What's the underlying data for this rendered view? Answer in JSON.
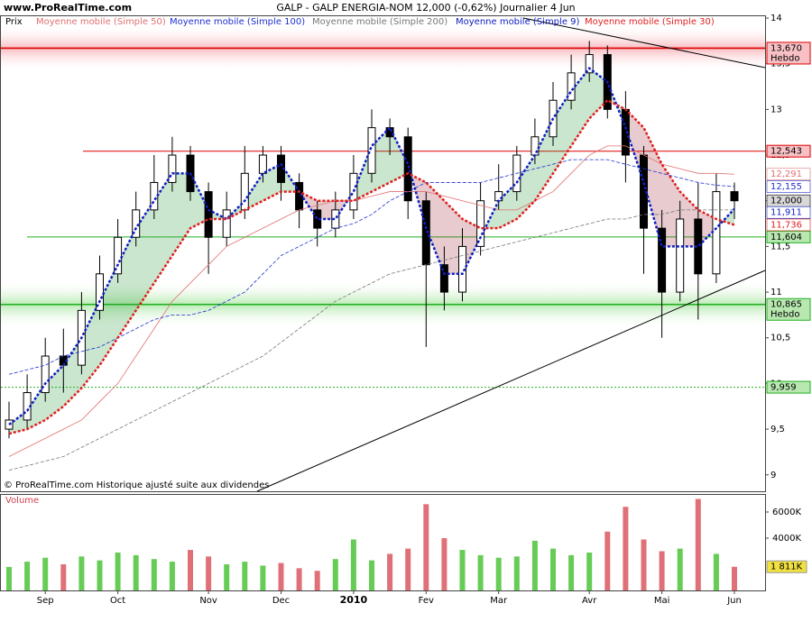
{
  "chart_data": {
    "type": "candlestick",
    "site": "www.ProRealTime.com",
    "title": "GALP - GALP ENERGIA-NOM    12,000 (-0,62%)    Journalier  4 Jun",
    "price_label": "Prix",
    "note": "© ProRealTime.com Historique ajusté suite aux dividendes",
    "categories": [
      null,
      null,
      "Sep",
      null,
      null,
      null,
      "Oct",
      null,
      null,
      null,
      null,
      "Nov",
      null,
      null,
      null,
      "Dec",
      null,
      null,
      null,
      "2010",
      null,
      null,
      null,
      "Fev",
      null,
      null,
      null,
      "Mar",
      null,
      null,
      null,
      null,
      "Avr",
      null,
      null,
      null,
      "Mai",
      null,
      null,
      null,
      "Jun"
    ],
    "open": [
      9.5,
      9.6,
      9.9,
      10.3,
      10.2,
      10.8,
      11.2,
      11.6,
      11.9,
      12.2,
      12.5,
      12.1,
      11.6,
      11.9,
      12.3,
      12.5,
      12.2,
      11.9,
      11.7,
      11.9,
      12.3,
      12.8,
      12.7,
      12.0,
      11.3,
      11.0,
      11.5,
      12.0,
      12.1,
      12.5,
      12.7,
      13.1,
      13.4,
      13.6,
      13.0,
      12.5,
      11.7,
      11.0,
      11.8,
      11.2,
      12.1
    ],
    "high": [
      9.8,
      10.1,
      10.5,
      10.6,
      11.0,
      11.4,
      11.8,
      12.1,
      12.5,
      12.7,
      12.6,
      12.2,
      12.1,
      12.6,
      12.6,
      12.6,
      12.3,
      12.0,
      12.1,
      12.5,
      13.0,
      12.9,
      12.8,
      12.1,
      11.5,
      11.7,
      12.2,
      12.4,
      12.6,
      12.9,
      13.3,
      13.6,
      13.75,
      13.7,
      13.2,
      12.6,
      11.9,
      12.0,
      12.2,
      12.3,
      12.2
    ],
    "low": [
      9.4,
      9.5,
      9.8,
      9.9,
      10.1,
      10.7,
      11.1,
      11.5,
      11.8,
      12.1,
      12.0,
      11.2,
      11.5,
      11.8,
      12.2,
      12.0,
      11.7,
      11.5,
      11.6,
      11.8,
      12.2,
      12.5,
      11.8,
      10.4,
      10.8,
      10.9,
      11.4,
      11.9,
      12.0,
      12.4,
      12.6,
      13.0,
      13.3,
      12.9,
      12.2,
      11.2,
      10.5,
      10.9,
      10.7,
      11.1,
      11.8
    ],
    "close": [
      9.6,
      9.9,
      10.3,
      10.2,
      10.8,
      11.2,
      11.6,
      11.9,
      12.2,
      12.5,
      12.1,
      11.6,
      11.9,
      12.3,
      12.5,
      12.2,
      11.9,
      11.7,
      11.9,
      12.3,
      12.8,
      12.7,
      12.0,
      11.3,
      11.0,
      11.5,
      12.0,
      12.1,
      12.5,
      12.7,
      13.1,
      13.4,
      13.6,
      13.0,
      12.5,
      11.7,
      11.0,
      11.8,
      11.2,
      12.1,
      12.0
    ],
    "close_label": "12,000",
    "series": [
      {
        "name": "Moyenne mobile (Simple 50)",
        "color": "#e07070",
        "width": 0.8,
        "dash": "none",
        "last_label": "12,291",
        "values": [
          9.2,
          9.3,
          9.4,
          9.5,
          9.6,
          9.8,
          10.0,
          10.3,
          10.6,
          10.9,
          11.1,
          11.3,
          11.5,
          11.6,
          11.7,
          11.8,
          11.9,
          11.95,
          12.0,
          12.0,
          12.05,
          12.1,
          12.1,
          12.1,
          12.05,
          12.0,
          11.95,
          11.9,
          11.9,
          12.0,
          12.1,
          12.3,
          12.5,
          12.6,
          12.6,
          12.5,
          12.4,
          12.35,
          12.3,
          12.3,
          12.291
        ]
      },
      {
        "name": "Moyenne mobile (Simple 100)",
        "color": "#2030d0",
        "width": 0.8,
        "dash": "4 2",
        "last_label": "12,155",
        "values": [
          10.1,
          10.15,
          10.2,
          10.3,
          10.35,
          10.4,
          10.5,
          10.6,
          10.7,
          10.75,
          10.75,
          10.8,
          10.9,
          11.0,
          11.2,
          11.4,
          11.5,
          11.6,
          11.7,
          11.75,
          11.85,
          12.0,
          12.1,
          12.2,
          12.2,
          12.2,
          12.2,
          12.25,
          12.3,
          12.35,
          12.4,
          12.45,
          12.45,
          12.45,
          12.4,
          12.35,
          12.3,
          12.25,
          12.2,
          12.17,
          12.155
        ]
      },
      {
        "name": "Moyenne mobile (Simple 200)",
        "color": "#777777",
        "width": 0.8,
        "dash": "4 2",
        "values": [
          9.05,
          9.1,
          9.15,
          9.2,
          9.3,
          9.4,
          9.5,
          9.6,
          9.7,
          9.8,
          9.9,
          10.0,
          10.1,
          10.2,
          10.3,
          10.45,
          10.6,
          10.75,
          10.9,
          11.0,
          11.1,
          11.2,
          11.25,
          11.3,
          11.35,
          11.4,
          11.45,
          11.5,
          11.55,
          11.6,
          11.65,
          11.7,
          11.75,
          11.8,
          11.8,
          11.85,
          11.85,
          11.9,
          11.9,
          11.9,
          11.9
        ]
      },
      {
        "name": "Moyenne mobile (Simple 9)",
        "color": "#1020c0",
        "width": 2.5,
        "dash": "3 2",
        "last_label": "11,911",
        "values": [
          9.55,
          9.7,
          10.0,
          10.2,
          10.5,
          10.9,
          11.3,
          11.7,
          12.0,
          12.3,
          12.3,
          11.9,
          11.8,
          12.0,
          12.3,
          12.4,
          12.1,
          11.8,
          11.8,
          12.1,
          12.6,
          12.8,
          12.4,
          11.7,
          11.2,
          11.2,
          11.6,
          12.0,
          12.2,
          12.5,
          12.9,
          13.2,
          13.45,
          13.3,
          12.8,
          12.2,
          11.5,
          11.5,
          11.5,
          11.7,
          11.911
        ]
      },
      {
        "name": "Moyenne mobile (Simple 30)",
        "color": "#e02020",
        "width": 2.5,
        "dash": "3 2",
        "last_label": "11,736",
        "values": [
          9.45,
          9.5,
          9.6,
          9.75,
          9.95,
          10.2,
          10.5,
          10.8,
          11.1,
          11.4,
          11.7,
          11.8,
          11.8,
          11.9,
          12.0,
          12.1,
          12.1,
          12.0,
          12.0,
          12.0,
          12.1,
          12.2,
          12.3,
          12.2,
          12.0,
          11.8,
          11.7,
          11.7,
          11.8,
          12.0,
          12.3,
          12.6,
          12.9,
          13.1,
          13.0,
          12.8,
          12.4,
          12.1,
          11.9,
          11.8,
          11.736
        ]
      }
    ],
    "cloud": {
      "fast": 3,
      "slow": 4,
      "up_color": "#2a9d3a",
      "down_color": "#a0303a"
    },
    "levels": [
      {
        "value": 13.67,
        "label": "13,670",
        "note": "Hebdo",
        "color": "#e00000",
        "band": true
      },
      {
        "value": 12.543,
        "label": "12,543",
        "color": "#e00000"
      },
      {
        "value": 11.604,
        "label": "11,604",
        "color": "#20b020"
      },
      {
        "value": 10.865,
        "label": "10,865",
        "note": "Hebdo",
        "color": "#20b020",
        "band": true
      },
      {
        "value": 9.959,
        "label": "9,959",
        "color": "#20b020",
        "dotted": true
      }
    ],
    "ylim": [
      8.82,
      14.02
    ],
    "yticks": [
      9,
      {
        "value": 9.5,
        "label": "9,5"
      },
      10,
      {
        "value": 10.5,
        "label": "10,5"
      },
      11,
      {
        "value": 11.5,
        "label": "11,5"
      },
      12,
      {
        "value": 12.5,
        "label": "12,5"
      },
      13,
      {
        "value": 13.5,
        "label": "13,5"
      },
      14
    ],
    "volume": {
      "title": "Volume",
      "up_color": "#66cc55",
      "down_color": "#e07078",
      "values": [
        1800,
        2200,
        2500,
        2000,
        2600,
        2300,
        2900,
        2700,
        2400,
        2200,
        3100,
        2600,
        2000,
        2200,
        1900,
        2100,
        1700,
        1500,
        2400,
        3900,
        2300,
        2800,
        3200,
        6600,
        4000,
        3100,
        2700,
        2500,
        2600,
        3800,
        3200,
        2700,
        2900,
        4500,
        6400,
        3900,
        3000,
        3200,
        7000,
        2800,
        1811
      ],
      "value_labels": [
        null,
        null,
        null,
        null,
        null,
        null,
        null,
        null,
        null,
        null,
        null,
        null,
        null,
        null,
        null,
        null,
        null,
        null,
        null,
        null,
        null,
        null,
        null,
        null,
        null,
        null,
        null,
        null,
        null,
        null,
        null,
        null,
        null,
        null,
        null,
        null,
        null,
        null,
        null,
        null,
        "1 811K"
      ],
      "ylim": [
        0,
        7380
      ],
      "yticks": [
        {
          "value": 4000,
          "label": "4000K"
        },
        {
          "value": 6000,
          "label": "6000K"
        }
      ]
    }
  }
}
